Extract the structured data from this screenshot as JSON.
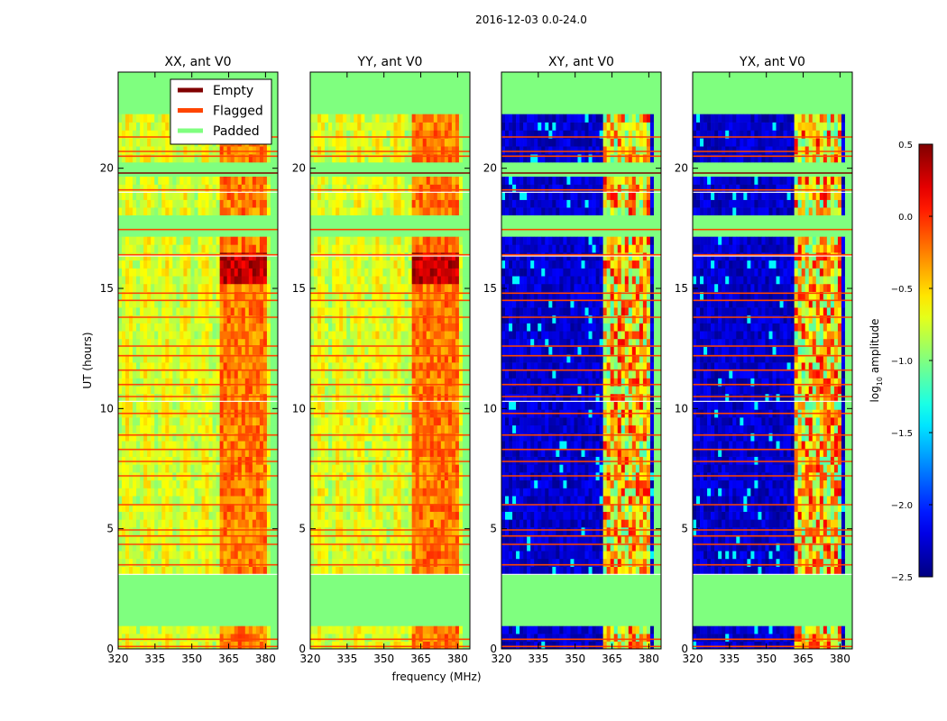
{
  "figure_title": "2016-12-03 0.0-24.0",
  "colors": {
    "padded": "#7fff7f",
    "flagged": "#ff4500",
    "empty": "#800000"
  },
  "colorbar": {
    "label_main": "log",
    "label_sub": "10",
    "label_tail": " amplitude",
    "ticks": [
      0.5,
      0.0,
      -0.5,
      -1.0,
      -1.5,
      -2.0,
      -2.5
    ],
    "tick_labels": [
      "0.5",
      "0.0",
      "−0.5",
      "−1.0",
      "−1.5",
      "−2.0",
      "−2.5"
    ],
    "range": [
      -2.5,
      0.5
    ],
    "colormap": "jet"
  },
  "chart_data": [
    {
      "type": "heatmap",
      "title": "XX, ant V0",
      "xlabel": "",
      "ylabel": "UT (hours)",
      "xlim": [
        320,
        385
      ],
      "ylim": [
        0,
        24
      ],
      "xticks": [
        320,
        335,
        350,
        365,
        380
      ],
      "yticks": [
        0,
        5,
        10,
        15,
        20
      ],
      "legend": {
        "placement": "top-right",
        "entries": [
          {
            "label": "Empty",
            "color": "#800000"
          },
          {
            "label": "Flagged",
            "color": "#ff4500"
          },
          {
            "label": "Padded",
            "color": "#7fff7f"
          }
        ]
      },
      "hot_band_mhz": [
        362,
        380
      ],
      "pattern": "auto"
    },
    {
      "type": "heatmap",
      "title": "YY, ant V0",
      "xlabel": "frequency (MHz)",
      "ylabel": "",
      "xlim": [
        320,
        385
      ],
      "ylim": [
        0,
        24
      ],
      "xticks": [
        320,
        335,
        350,
        365,
        380
      ],
      "yticks": [
        0,
        5,
        10,
        15,
        20
      ],
      "hot_band_mhz": [
        361,
        380
      ],
      "pattern": "auto"
    },
    {
      "type": "heatmap",
      "title": "XY, ant V0",
      "xlabel": "",
      "ylabel": "",
      "xlim": [
        320,
        385
      ],
      "ylim": [
        0,
        24
      ],
      "xticks": [
        320,
        335,
        350,
        365,
        380
      ],
      "yticks": [
        0,
        5,
        10,
        15,
        20
      ],
      "hot_band_mhz": [
        362,
        380
      ],
      "pattern": "cross"
    },
    {
      "type": "heatmap",
      "title": "YX, ant V0",
      "xlabel": "",
      "ylabel": "",
      "xlim": [
        320,
        385
      ],
      "ylim": [
        0,
        24
      ],
      "xticks": [
        320,
        335,
        350,
        365,
        380
      ],
      "yticks": [
        0,
        5,
        10,
        15,
        20
      ],
      "hot_band_mhz": [
        361,
        380
      ],
      "pattern": "cross"
    }
  ],
  "time_structure": {
    "padded_ranges_hours": [
      [
        0.95,
        3.1
      ],
      [
        17.15,
        18.05
      ],
      [
        19.65,
        20.25
      ],
      [
        22.25,
        24.0
      ]
    ],
    "flagged_lines_hours": [
      0.1,
      0.4,
      3.5,
      4.35,
      4.7,
      4.95,
      6.0,
      7.2,
      7.8,
      8.3,
      8.9,
      9.8,
      10.5,
      11.0,
      11.6,
      12.2,
      12.6,
      13.8,
      14.5,
      14.8,
      16.4,
      17.45,
      19.1,
      20.5,
      20.7,
      21.3
    ],
    "empty_lines_hours": [
      19.8
    ],
    "band_edges_hours": [
      3.1,
      10.3,
      16.35,
      19.0
    ]
  }
}
